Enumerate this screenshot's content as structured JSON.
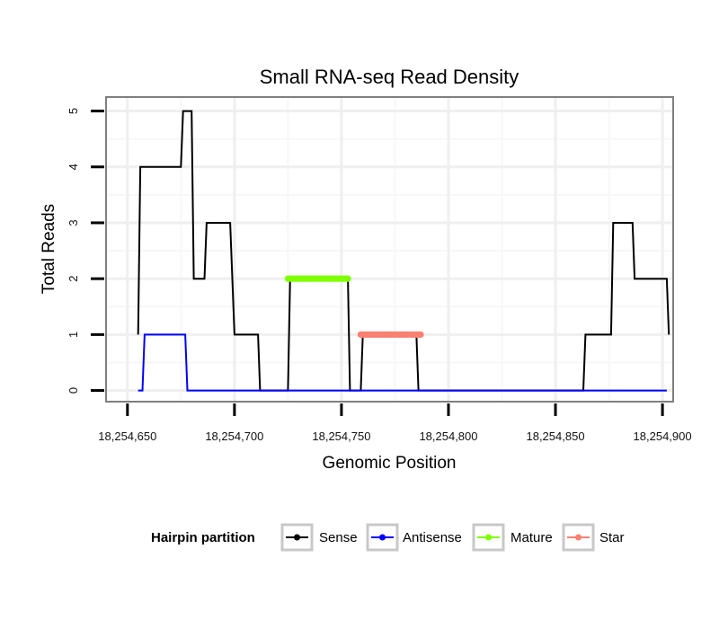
{
  "chart_data": {
    "type": "line",
    "title": "Small RNA-seq Read Density",
    "xlabel": "Genomic Position",
    "ylabel": "Total Reads",
    "xlim": [
      18254640,
      18254905
    ],
    "ylim": [
      -0.2,
      5.25
    ],
    "x_ticks": [
      18254650,
      18254700,
      18254750,
      18254800,
      18254850,
      18254900
    ],
    "x_tick_labels": [
      "18,254,650",
      "18,254,700",
      "18,254,750",
      "18,254,800",
      "18,254,850",
      "18,254,900"
    ],
    "y_ticks": [
      0,
      1,
      2,
      3,
      4,
      5
    ],
    "y_tick_labels": [
      "0",
      "1",
      "2",
      "3",
      "4",
      "5"
    ],
    "grid": true,
    "legend": {
      "title": "Hairpin partition",
      "position": "bottom",
      "entries": [
        "Sense",
        "Antisense",
        "Mature",
        "Star"
      ]
    },
    "series": [
      {
        "name": "Sense",
        "color": "#000000",
        "style": "line",
        "points": [
          [
            18254655,
            1
          ],
          [
            18254656,
            4
          ],
          [
            18254675,
            4
          ],
          [
            18254676,
            5
          ],
          [
            18254680,
            5
          ],
          [
            18254681,
            2
          ],
          [
            18254686,
            2
          ],
          [
            18254687,
            3
          ],
          [
            18254698,
            3
          ],
          [
            18254700,
            1
          ],
          [
            18254711,
            1
          ],
          [
            18254712,
            0
          ],
          [
            18254725,
            0
          ],
          [
            18254726,
            2
          ],
          [
            18254753,
            2
          ],
          [
            18254754,
            0
          ],
          [
            18254759,
            0
          ],
          [
            18254760,
            1
          ],
          [
            18254785,
            1
          ],
          [
            18254786,
            0
          ],
          [
            18254863,
            0
          ],
          [
            18254864,
            1
          ],
          [
            18254876,
            1
          ],
          [
            18254877,
            3
          ],
          [
            18254886,
            3
          ],
          [
            18254887,
            2
          ],
          [
            18254902,
            2
          ],
          [
            18254903,
            1
          ]
        ]
      },
      {
        "name": "Antisense",
        "color": "#0000ff",
        "style": "line",
        "points": [
          [
            18254655,
            0
          ],
          [
            18254657,
            0
          ],
          [
            18254658,
            1
          ],
          [
            18254677,
            1
          ],
          [
            18254678,
            0
          ],
          [
            18254902,
            0
          ]
        ]
      },
      {
        "name": "Mature",
        "color": "#7fff00",
        "style": "points",
        "points": [
          [
            18254725,
            2
          ],
          [
            18254753,
            2
          ]
        ]
      },
      {
        "name": "Star",
        "color": "#fa8072",
        "style": "points",
        "points": [
          [
            18254759,
            1
          ],
          [
            18254787,
            1
          ]
        ]
      }
    ]
  }
}
